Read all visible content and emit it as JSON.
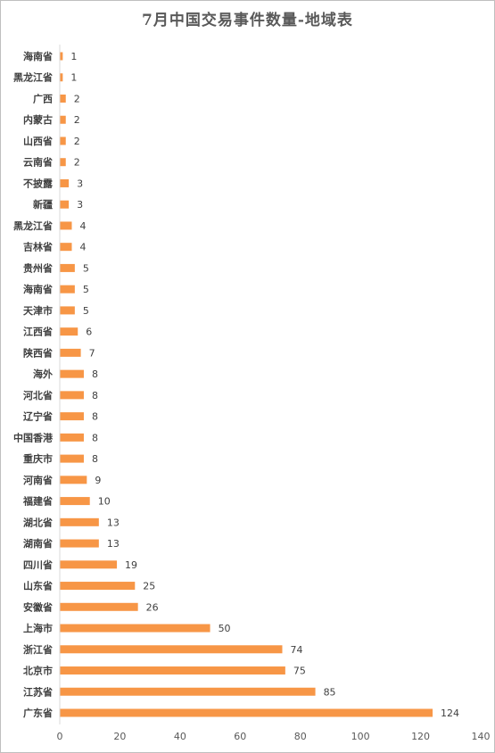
{
  "chart_data": {
    "type": "bar",
    "orientation": "horizontal",
    "title": "7月中国交易事件数量-地域表",
    "xlabel": "",
    "ylabel": "",
    "xlim": [
      0,
      140
    ],
    "xticks": [
      0,
      20,
      40,
      60,
      80,
      100,
      120,
      140
    ],
    "grid": false,
    "legend": "none",
    "bar_color": "#F79646",
    "categories": [
      "海南省",
      "黑龙江省",
      "广西",
      "内蒙古",
      "山西省",
      "云南省",
      "不披露",
      "新疆",
      "黑龙江省",
      "吉林省",
      "贵州省",
      "海南省",
      "天津市",
      "江西省",
      "陕西省",
      "海外",
      "河北省",
      "辽宁省",
      "中国香港",
      "重庆市",
      "河南省",
      "福建省",
      "湖北省",
      "湖南省",
      "四川省",
      "山东省",
      "安徽省",
      "上海市",
      "浙江省",
      "北京市",
      "江苏省",
      "广东省"
    ],
    "values": [
      1,
      1,
      2,
      2,
      2,
      2,
      3,
      3,
      4,
      4,
      5,
      5,
      5,
      6,
      7,
      8,
      8,
      8,
      8,
      8,
      9,
      10,
      13,
      13,
      19,
      25,
      26,
      50,
      74,
      75,
      85,
      124
    ]
  }
}
